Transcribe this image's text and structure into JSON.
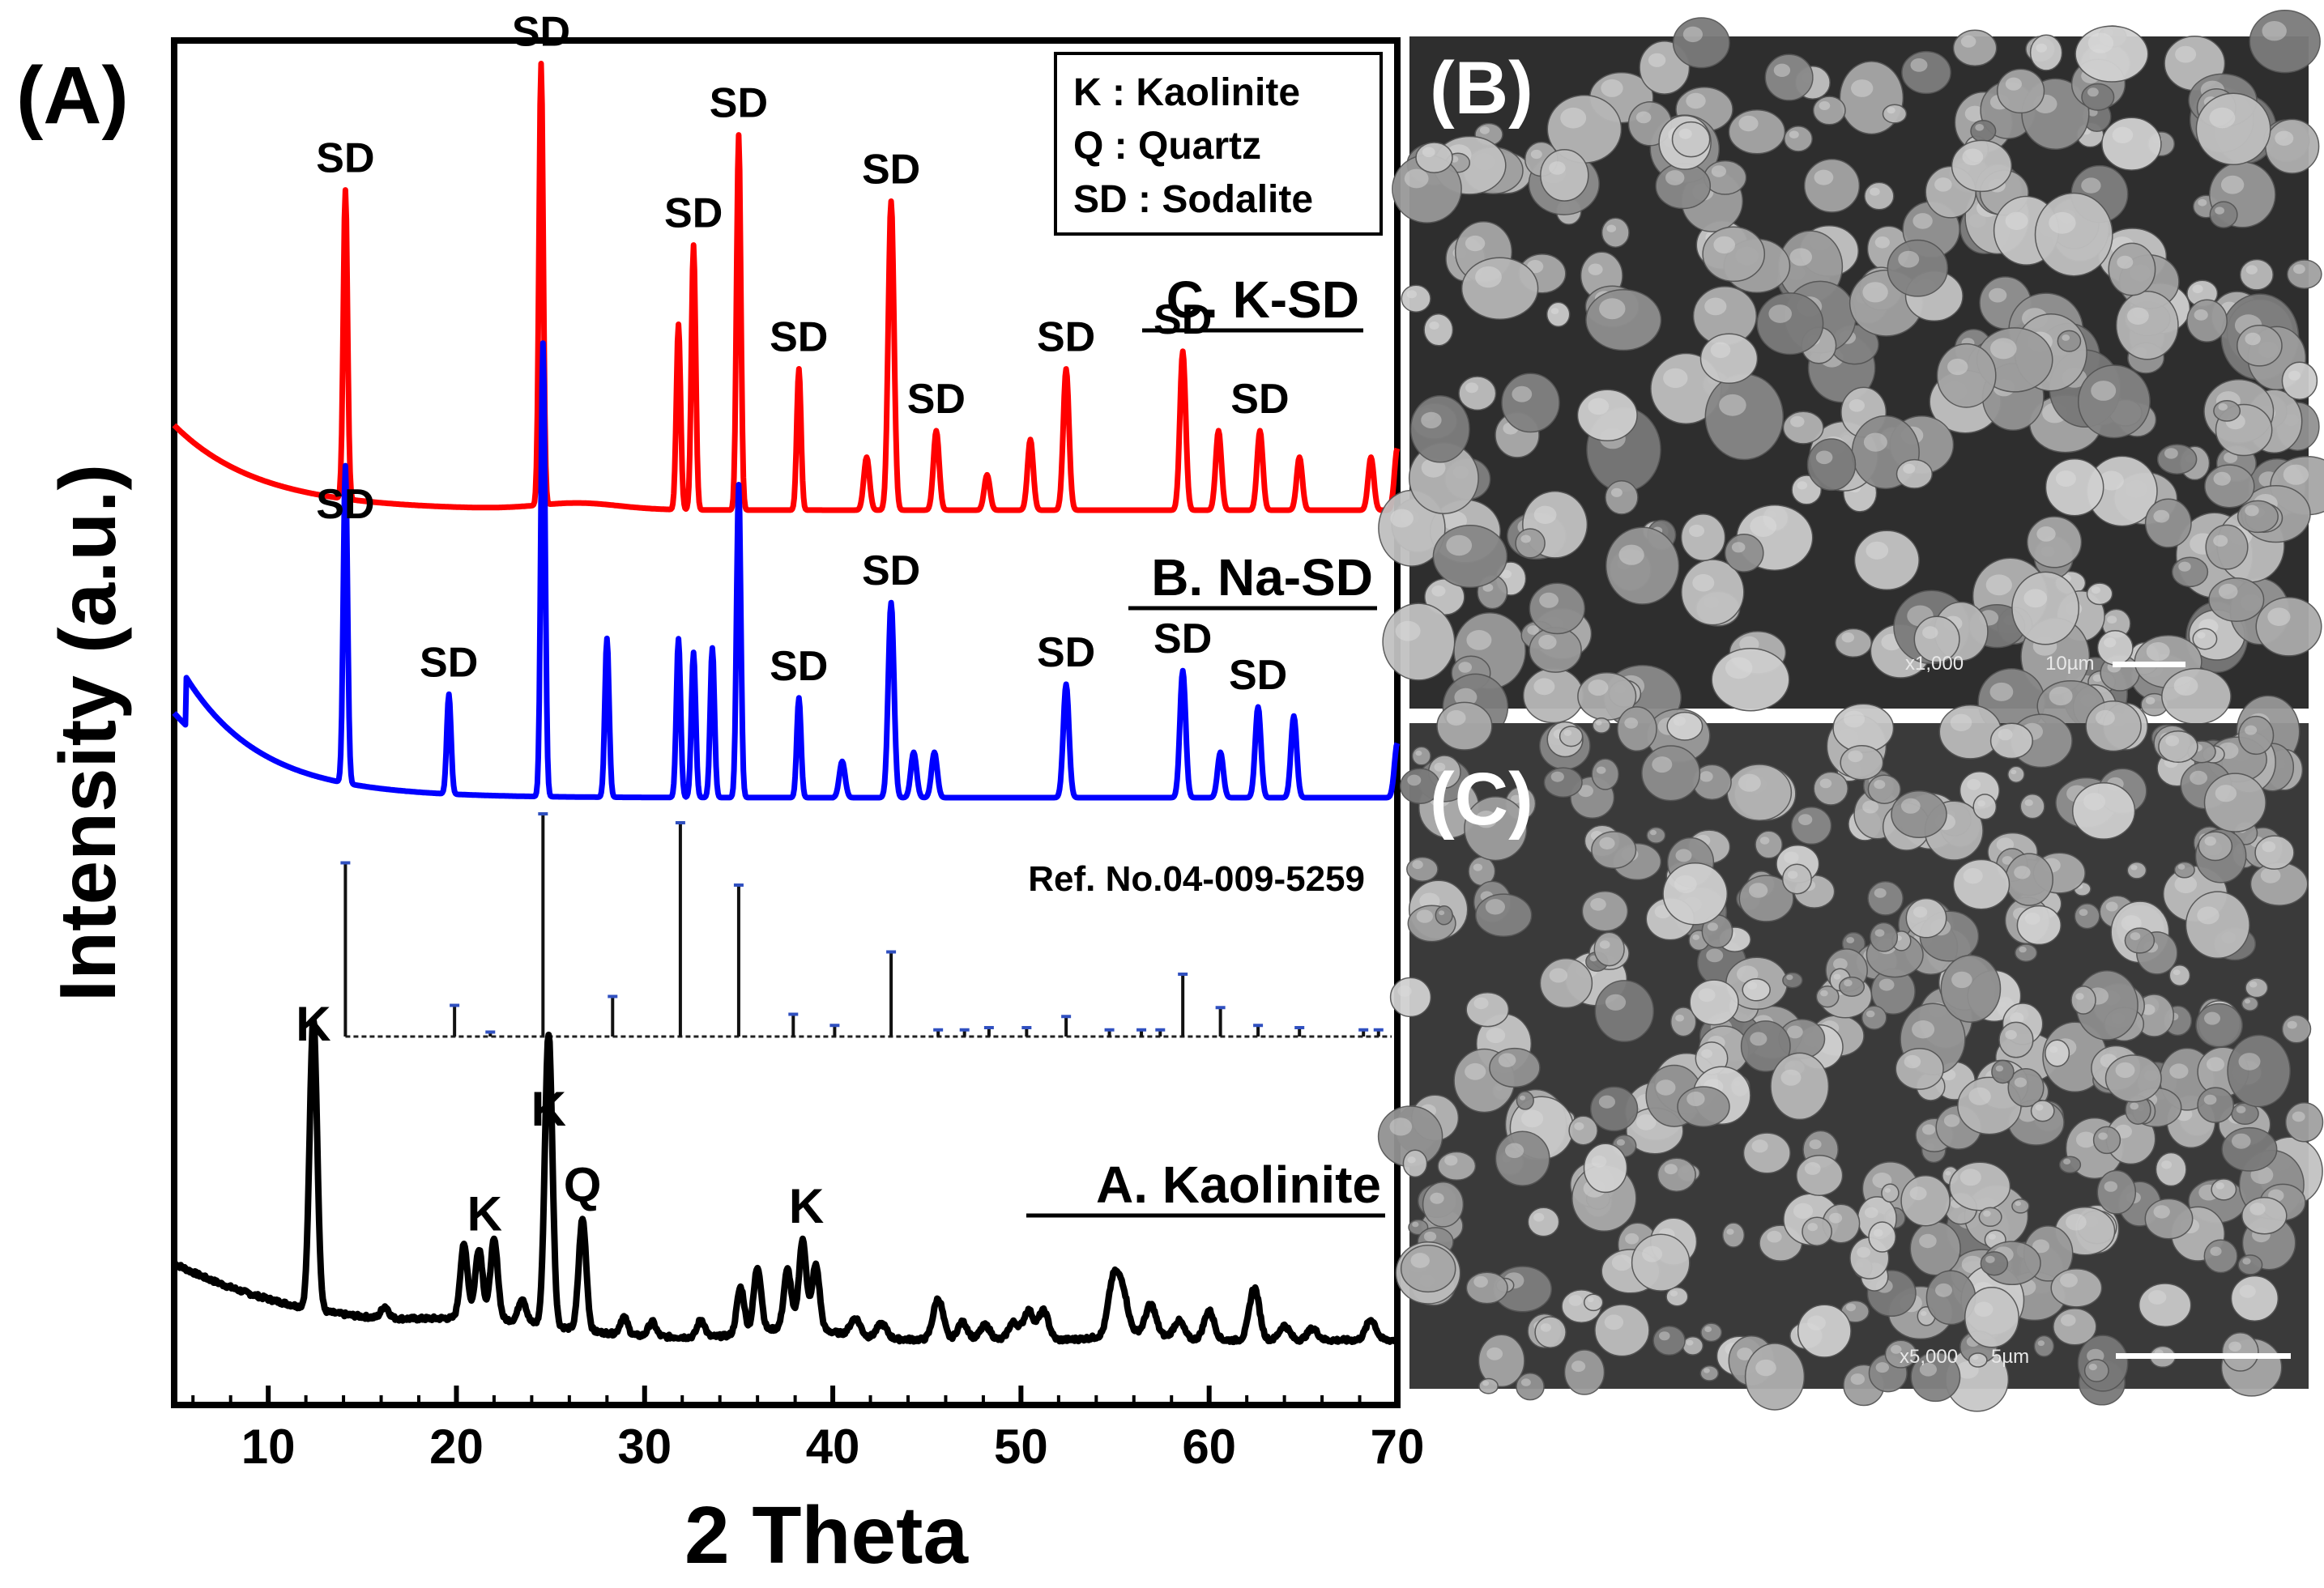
{
  "panels": {
    "A": "(A)",
    "B": "(B)",
    "C": "(C)"
  },
  "colors": {
    "K-SD": "#ff0000",
    "Na-SD": "#0000ff",
    "Kaolinite": "#000000",
    "reference": "#000000",
    "sem_bg": "#2e2e2e",
    "sem_particle": "#a9a9a9"
  },
  "chart_data": {
    "type": "line",
    "xlabel": "2 Theta",
    "ylabel": "Intensity (a.u.)",
    "xlim": [
      5,
      70
    ],
    "x_ticks": [
      10,
      20,
      30,
      40,
      50,
      60,
      70
    ],
    "y_ticks": [],
    "legend": {
      "placement": "top-right",
      "entries": [
        "K : Kaolinite",
        "Q : Quartz",
        "SD : Sodalite"
      ]
    },
    "series": [
      {
        "name": "C. K-SD",
        "color": "#ff0000",
        "peaks": [
          [
            14.1,
            0.7
          ],
          [
            24.5,
            1.0
          ],
          [
            31.8,
            0.42
          ],
          [
            32.6,
            0.6
          ],
          [
            35.0,
            0.85
          ],
          [
            38.2,
            0.32
          ],
          [
            41.8,
            0.12
          ],
          [
            43.1,
            0.7
          ],
          [
            45.5,
            0.18
          ],
          [
            48.2,
            0.08
          ],
          [
            50.5,
            0.16
          ],
          [
            52.4,
            0.32
          ],
          [
            58.6,
            0.36
          ],
          [
            60.5,
            0.18
          ],
          [
            62.7,
            0.18
          ],
          [
            64.8,
            0.12
          ],
          [
            68.6,
            0.12
          ],
          [
            70.0,
            0.14
          ]
        ],
        "annotations": [
          {
            "label": "SD",
            "x": 14.1
          },
          {
            "label": "SD",
            "x": 24.5
          },
          {
            "label": "SD",
            "x": 32.6
          },
          {
            "label": "SD",
            "x": 35.0
          },
          {
            "label": "SD",
            "x": 38.2
          },
          {
            "label": "SD",
            "x": 43.1
          },
          {
            "label": "SD",
            "x": 45.5
          },
          {
            "label": "SD",
            "x": 52.4
          },
          {
            "label": "SD",
            "x": 58.6
          },
          {
            "label": "SD",
            "x": 62.7
          }
        ]
      },
      {
        "name": "B. Na-SD",
        "color": "#0000ff",
        "peaks": [
          [
            14.1,
            0.7
          ],
          [
            19.6,
            0.22
          ],
          [
            24.6,
            1.0
          ],
          [
            28.0,
            0.35
          ],
          [
            31.8,
            0.35
          ],
          [
            32.6,
            0.32
          ],
          [
            33.6,
            0.33
          ],
          [
            35.0,
            0.69
          ],
          [
            38.2,
            0.22
          ],
          [
            40.5,
            0.08
          ],
          [
            43.1,
            0.43
          ],
          [
            44.3,
            0.1
          ],
          [
            45.4,
            0.1
          ],
          [
            52.4,
            0.25
          ],
          [
            58.6,
            0.28
          ],
          [
            60.6,
            0.1
          ],
          [
            62.6,
            0.2
          ],
          [
            64.5,
            0.18
          ],
          [
            70.0,
            0.12
          ]
        ],
        "annotations": [
          {
            "label": "SD",
            "x": 14.1
          },
          {
            "label": "SD",
            "x": 19.6
          },
          {
            "label": "SD",
            "x": 38.2
          },
          {
            "label": "SD",
            "x": 43.1
          },
          {
            "label": "SD",
            "x": 52.4
          },
          {
            "label": "SD",
            "x": 58.6
          },
          {
            "label": "SD",
            "x": 62.6
          }
        ]
      },
      {
        "name": "Ref. No.04-009-5259",
        "color": "#000000",
        "type": "stick",
        "sticks": [
          [
            14.1,
            0.78
          ],
          [
            19.9,
            0.14
          ],
          [
            21.8,
            0.02
          ],
          [
            24.6,
            1.0
          ],
          [
            28.3,
            0.18
          ],
          [
            31.9,
            0.96
          ],
          [
            35.0,
            0.68
          ],
          [
            37.9,
            0.1
          ],
          [
            40.1,
            0.05
          ],
          [
            43.1,
            0.38
          ],
          [
            45.6,
            0.03
          ],
          [
            47.0,
            0.03
          ],
          [
            48.3,
            0.04
          ],
          [
            50.3,
            0.04
          ],
          [
            52.4,
            0.09
          ],
          [
            54.7,
            0.03
          ],
          [
            56.4,
            0.03
          ],
          [
            57.4,
            0.03
          ],
          [
            58.6,
            0.28
          ],
          [
            60.6,
            0.13
          ],
          [
            62.6,
            0.05
          ],
          [
            64.8,
            0.04
          ],
          [
            68.2,
            0.03
          ],
          [
            69.0,
            0.03
          ]
        ]
      },
      {
        "name": "A. Kaolinite",
        "color": "#000000",
        "peaks": [
          [
            12.4,
            1.0
          ],
          [
            16.2,
            0.04
          ],
          [
            20.4,
            0.25
          ],
          [
            21.2,
            0.24
          ],
          [
            22.0,
            0.27
          ],
          [
            23.5,
            0.08
          ],
          [
            24.9,
            1.0
          ],
          [
            26.7,
            0.38
          ],
          [
            28.9,
            0.06
          ],
          [
            30.4,
            0.05
          ],
          [
            33.0,
            0.06
          ],
          [
            35.1,
            0.16
          ],
          [
            36.0,
            0.22
          ],
          [
            37.6,
            0.2
          ],
          [
            38.4,
            0.3
          ],
          [
            39.1,
            0.22
          ],
          [
            41.2,
            0.06
          ],
          [
            42.6,
            0.05
          ],
          [
            45.6,
            0.14
          ],
          [
            46.9,
            0.06
          ],
          [
            48.1,
            0.05
          ],
          [
            49.6,
            0.06
          ],
          [
            50.4,
            0.1
          ],
          [
            51.2,
            0.1
          ],
          [
            54.9,
            0.18
          ],
          [
            55.4,
            0.14
          ],
          [
            56.9,
            0.1
          ],
          [
            58.4,
            0.06
          ],
          [
            60.0,
            0.1
          ],
          [
            62.4,
            0.18
          ],
          [
            64.0,
            0.05
          ],
          [
            65.5,
            0.04
          ],
          [
            68.6,
            0.07
          ]
        ],
        "annotations": [
          {
            "label": "K",
            "x": 12.4
          },
          {
            "label": "K",
            "x": 21.5
          },
          {
            "label": "K",
            "x": 24.9
          },
          {
            "label": "Q",
            "x": 26.7
          },
          {
            "label": "K",
            "x": 38.6
          }
        ]
      }
    ]
  },
  "sem": {
    "B": {
      "magnification": "x1,000",
      "scale": "10µm"
    },
    "C": {
      "magnification": "x5,000",
      "scale": "5µm"
    }
  }
}
